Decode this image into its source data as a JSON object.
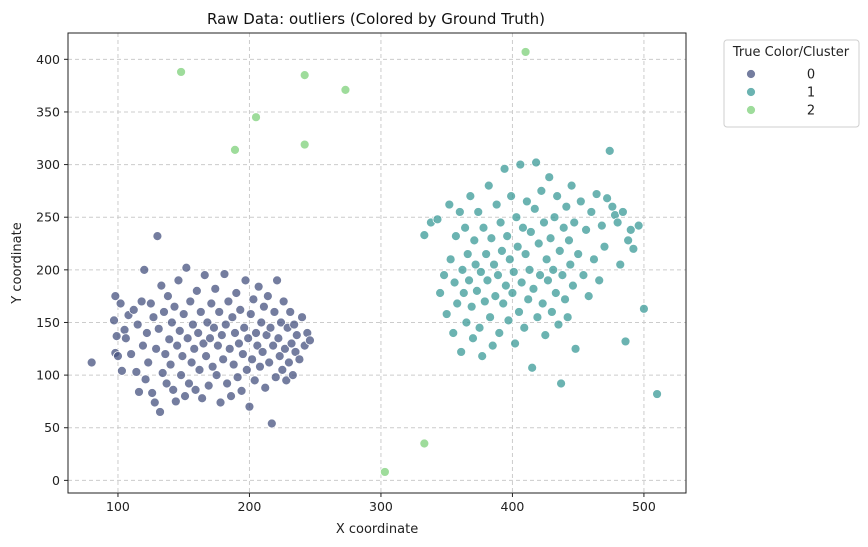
{
  "chart_data": {
    "type": "scatter",
    "title": "Raw Data: outliers (Colored by Ground Truth)",
    "xlabel": "X coordinate",
    "ylabel": "Y coordinate",
    "xlim": [
      62,
      532
    ],
    "ylim": [
      -12,
      425
    ],
    "xticks": [
      100,
      200,
      300,
      400,
      500
    ],
    "yticks": [
      0,
      50,
      100,
      150,
      200,
      250,
      300,
      350,
      400
    ],
    "grid": true,
    "legend": {
      "title": "True Color/Cluster",
      "placement": "outside-top-right",
      "entries": [
        "0",
        "1",
        "2"
      ]
    },
    "series": [
      {
        "name": "0",
        "color": "#46527f",
        "points": [
          [
            80,
            112
          ],
          [
            97,
            152
          ],
          [
            98,
            175
          ],
          [
            98,
            121
          ],
          [
            99,
            137
          ],
          [
            100,
            118
          ],
          [
            102,
            168
          ],
          [
            103,
            104
          ],
          [
            105,
            143
          ],
          [
            106,
            135
          ],
          [
            108,
            157
          ],
          [
            110,
            120
          ],
          [
            112,
            162
          ],
          [
            114,
            103
          ],
          [
            115,
            148
          ],
          [
            116,
            84
          ],
          [
            118,
            170
          ],
          [
            119,
            128
          ],
          [
            120,
            200
          ],
          [
            121,
            96
          ],
          [
            122,
            140
          ],
          [
            123,
            112
          ],
          [
            125,
            168
          ],
          [
            126,
            83
          ],
          [
            127,
            155
          ],
          [
            128,
            74
          ],
          [
            129,
            125
          ],
          [
            130,
            232
          ],
          [
            131,
            144
          ],
          [
            132,
            65
          ],
          [
            133,
            185
          ],
          [
            134,
            102
          ],
          [
            135,
            160
          ],
          [
            136,
            120
          ],
          [
            137,
            92
          ],
          [
            138,
            175
          ],
          [
            139,
            134
          ],
          [
            140,
            110
          ],
          [
            141,
            150
          ],
          [
            142,
            86
          ],
          [
            143,
            165
          ],
          [
            144,
            75
          ],
          [
            145,
            128
          ],
          [
            146,
            190
          ],
          [
            147,
            142
          ],
          [
            148,
            100
          ],
          [
            149,
            118
          ],
          [
            150,
            158
          ],
          [
            151,
            80
          ],
          [
            152,
            202
          ],
          [
            153,
            135
          ],
          [
            154,
            92
          ],
          [
            155,
            170
          ],
          [
            156,
            112
          ],
          [
            157,
            148
          ],
          [
            158,
            125
          ],
          [
            159,
            86
          ],
          [
            160,
            180
          ],
          [
            161,
            140
          ],
          [
            162,
            105
          ],
          [
            163,
            160
          ],
          [
            164,
            78
          ],
          [
            165,
            130
          ],
          [
            166,
            195
          ],
          [
            167,
            118
          ],
          [
            168,
            150
          ],
          [
            169,
            90
          ],
          [
            170,
            135
          ],
          [
            171,
            168
          ],
          [
            172,
            108
          ],
          [
            173,
            145
          ],
          [
            174,
            182
          ],
          [
            175,
            100
          ],
          [
            176,
            128
          ],
          [
            177,
            160
          ],
          [
            178,
            74
          ],
          [
            179,
            138
          ],
          [
            180,
            115
          ],
          [
            181,
            196
          ],
          [
            182,
            148
          ],
          [
            183,
            92
          ],
          [
            184,
            170
          ],
          [
            185,
            125
          ],
          [
            186,
            80
          ],
          [
            187,
            155
          ],
          [
            188,
            110
          ],
          [
            189,
            140
          ],
          [
            190,
            178
          ],
          [
            191,
            98
          ],
          [
            192,
            130
          ],
          [
            193,
            162
          ],
          [
            194,
            85
          ],
          [
            195,
            120
          ],
          [
            196,
            145
          ],
          [
            197,
            190
          ],
          [
            198,
            105
          ],
          [
            199,
            135
          ],
          [
            200,
            70
          ],
          [
            201,
            158
          ],
          [
            202,
            115
          ],
          [
            203,
            172
          ],
          [
            204,
            95
          ],
          [
            205,
            140
          ],
          [
            206,
            128
          ],
          [
            207,
            184
          ],
          [
            208,
            108
          ],
          [
            209,
            150
          ],
          [
            210,
            122
          ],
          [
            211,
            165
          ],
          [
            212,
            88
          ],
          [
            213,
            138
          ],
          [
            214,
            175
          ],
          [
            215,
            112
          ],
          [
            216,
            145
          ],
          [
            217,
            54
          ],
          [
            218,
            128
          ],
          [
            219,
            160
          ],
          [
            220,
            98
          ],
          [
            221,
            190
          ],
          [
            222,
            135
          ],
          [
            223,
            118
          ],
          [
            224,
            150
          ],
          [
            225,
            105
          ],
          [
            226,
            170
          ],
          [
            227,
            125
          ],
          [
            228,
            95
          ],
          [
            229,
            145
          ],
          [
            230,
            112
          ],
          [
            231,
            160
          ],
          [
            232,
            130
          ],
          [
            233,
            100
          ],
          [
            234,
            148
          ],
          [
            235,
            122
          ],
          [
            236,
            138
          ],
          [
            238,
            115
          ],
          [
            240,
            155
          ],
          [
            242,
            128
          ],
          [
            244,
            140
          ],
          [
            246,
            133
          ]
        ]
      },
      {
        "name": "1",
        "color": "#3a9a97",
        "points": [
          [
            333,
            233
          ],
          [
            338,
            245
          ],
          [
            343,
            248
          ],
          [
            345,
            178
          ],
          [
            348,
            195
          ],
          [
            350,
            158
          ],
          [
            352,
            262
          ],
          [
            353,
            210
          ],
          [
            355,
            140
          ],
          [
            356,
            188
          ],
          [
            357,
            232
          ],
          [
            358,
            168
          ],
          [
            360,
            255
          ],
          [
            361,
            122
          ],
          [
            362,
            200
          ],
          [
            363,
            178
          ],
          [
            364,
            240
          ],
          [
            365,
            150
          ],
          [
            366,
            215
          ],
          [
            367,
            190
          ],
          [
            368,
            270
          ],
          [
            369,
            165
          ],
          [
            370,
            135
          ],
          [
            371,
            228
          ],
          [
            372,
            205
          ],
          [
            373,
            180
          ],
          [
            374,
            255
          ],
          [
            375,
            145
          ],
          [
            376,
            198
          ],
          [
            377,
            118
          ],
          [
            378,
            240
          ],
          [
            379,
            170
          ],
          [
            380,
            215
          ],
          [
            381,
            190
          ],
          [
            382,
            280
          ],
          [
            383,
            155
          ],
          [
            384,
            230
          ],
          [
            385,
            128
          ],
          [
            386,
            205
          ],
          [
            387,
            175
          ],
          [
            388,
            262
          ],
          [
            389,
            195
          ],
          [
            390,
            140
          ],
          [
            391,
            245
          ],
          [
            392,
            218
          ],
          [
            393,
            168
          ],
          [
            394,
            296
          ],
          [
            395,
            185
          ],
          [
            396,
            232
          ],
          [
            397,
            152
          ],
          [
            398,
            210
          ],
          [
            399,
            270
          ],
          [
            400,
            178
          ],
          [
            401,
            198
          ],
          [
            402,
            130
          ],
          [
            403,
            250
          ],
          [
            404,
            222
          ],
          [
            405,
            160
          ],
          [
            406,
            300
          ],
          [
            407,
            188
          ],
          [
            408,
            240
          ],
          [
            409,
            145
          ],
          [
            410,
            215
          ],
          [
            411,
            265
          ],
          [
            412,
            172
          ],
          [
            413,
            200
          ],
          [
            414,
            236
          ],
          [
            415,
            107
          ],
          [
            416,
            182
          ],
          [
            417,
            258
          ],
          [
            418,
            302
          ],
          [
            419,
            155
          ],
          [
            420,
            225
          ],
          [
            421,
            195
          ],
          [
            422,
            275
          ],
          [
            423,
            168
          ],
          [
            424,
            245
          ],
          [
            425,
            138
          ],
          [
            426,
            210
          ],
          [
            427,
            190
          ],
          [
            428,
            288
          ],
          [
            429,
            230
          ],
          [
            430,
            160
          ],
          [
            431,
            200
          ],
          [
            432,
            250
          ],
          [
            433,
            178
          ],
          [
            434,
            270
          ],
          [
            435,
            148
          ],
          [
            436,
            218
          ],
          [
            437,
            92
          ],
          [
            438,
            195
          ],
          [
            439,
            240
          ],
          [
            440,
            172
          ],
          [
            441,
            260
          ],
          [
            442,
            155
          ],
          [
            443,
            228
          ],
          [
            444,
            205
          ],
          [
            445,
            280
          ],
          [
            446,
            185
          ],
          [
            447,
            245
          ],
          [
            448,
            125
          ],
          [
            450,
            215
          ],
          [
            452,
            265
          ],
          [
            454,
            195
          ],
          [
            456,
            238
          ],
          [
            458,
            175
          ],
          [
            460,
            255
          ],
          [
            462,
            210
          ],
          [
            464,
            272
          ],
          [
            466,
            190
          ],
          [
            468,
            242
          ],
          [
            470,
            222
          ],
          [
            472,
            268
          ],
          [
            474,
            313
          ],
          [
            476,
            260
          ],
          [
            478,
            252
          ],
          [
            480,
            245
          ],
          [
            482,
            205
          ],
          [
            484,
            255
          ],
          [
            486,
            132
          ],
          [
            488,
            228
          ],
          [
            490,
            238
          ],
          [
            492,
            220
          ],
          [
            496,
            242
          ],
          [
            500,
            163
          ],
          [
            510,
            82
          ]
        ]
      },
      {
        "name": "2",
        "color": "#7ed07a",
        "points": [
          [
            148,
            388
          ],
          [
            189,
            314
          ],
          [
            205,
            345
          ],
          [
            242,
            385
          ],
          [
            242,
            319
          ],
          [
            273,
            371
          ],
          [
            303,
            8
          ],
          [
            333,
            35
          ],
          [
            410,
            407
          ]
        ]
      }
    ]
  }
}
